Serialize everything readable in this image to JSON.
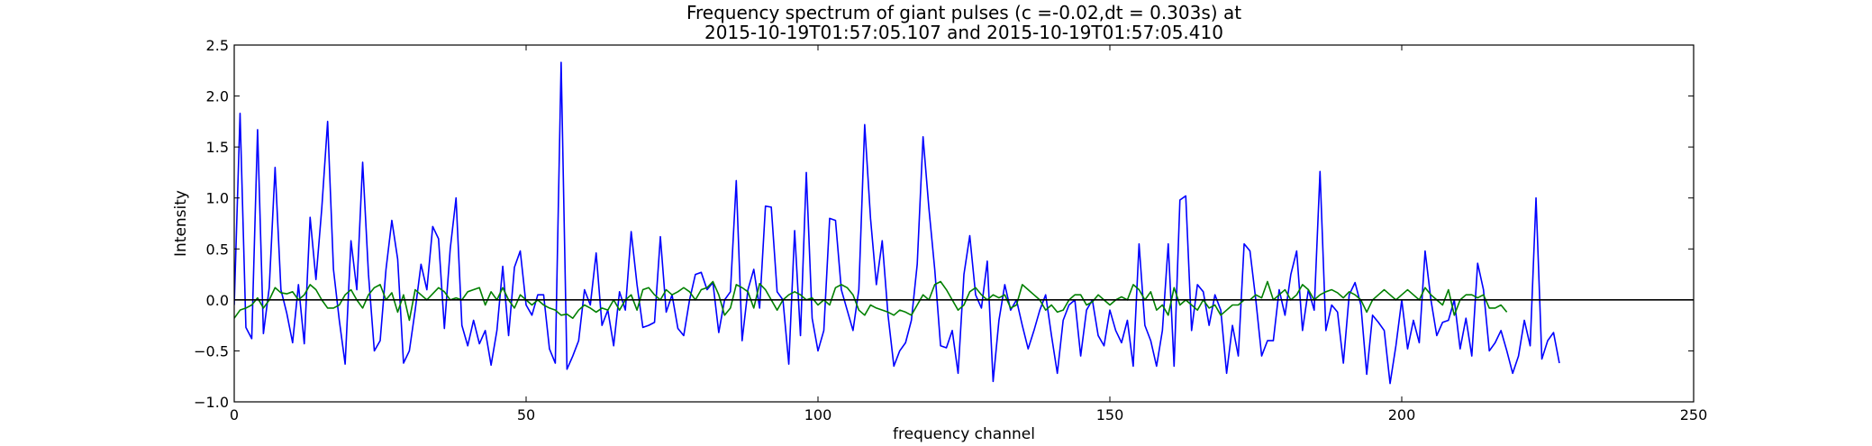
{
  "chart_data": {
    "type": "line",
    "title_line1": "Frequency spectrum of giant pulses (c =-0.02,dt = 0.303s) at",
    "title_line2": "2015-10-19T01:57:05.107 and 2015-10-19T01:57:05.410",
    "xlabel": "frequency channel",
    "ylabel": "Intensity",
    "xlim": [
      0,
      250
    ],
    "ylim": [
      -1.0,
      2.5
    ],
    "xticks": [
      0,
      50,
      100,
      150,
      200,
      250
    ],
    "xtick_labels": [
      "0",
      "50",
      "100",
      "150",
      "200",
      "250"
    ],
    "yticks": [
      -1.0,
      -0.5,
      0.0,
      0.5,
      1.0,
      1.5,
      2.0,
      2.5
    ],
    "ytick_labels": [
      "−1.0",
      "−0.5",
      "0.0",
      "0.5",
      "1.0",
      "1.5",
      "2.0",
      "2.5"
    ],
    "grid": false,
    "reference_line": {
      "y": 0.0,
      "color": "#000000"
    },
    "series": [
      {
        "color": "#0000ff",
        "x_start": 0,
        "x_step": 1,
        "values": [
          -0.05,
          1.83,
          -0.27,
          -0.38,
          1.67,
          -0.33,
          0.12,
          1.3,
          0.1,
          -0.13,
          -0.42,
          0.15,
          -0.43,
          0.81,
          0.2,
          0.9,
          1.75,
          0.3,
          -0.2,
          -0.63,
          0.58,
          0.1,
          1.35,
          0.25,
          -0.5,
          -0.4,
          0.3,
          0.78,
          0.4,
          -0.62,
          -0.5,
          -0.1,
          0.35,
          0.1,
          0.72,
          0.6,
          -0.28,
          0.5,
          1.0,
          -0.25,
          -0.45,
          -0.2,
          -0.43,
          -0.3,
          -0.64,
          -0.3,
          0.33,
          -0.35,
          0.32,
          0.48,
          -0.05,
          -0.15,
          0.05,
          0.05,
          -0.48,
          -0.62,
          2.33,
          -0.68,
          -0.55,
          -0.4,
          0.1,
          -0.05,
          0.46,
          -0.25,
          -0.1,
          -0.45,
          0.08,
          -0.1,
          0.67,
          0.15,
          -0.27,
          -0.25,
          -0.22,
          0.62,
          -0.12,
          0.05,
          -0.28,
          -0.35,
          0.0,
          0.25,
          0.27,
          0.1,
          0.17,
          -0.32,
          0.0,
          0.08,
          1.17,
          -0.4,
          0.1,
          0.3,
          -0.08,
          0.92,
          0.91,
          0.08,
          0.0,
          -0.63,
          0.68,
          -0.35,
          1.25,
          -0.18,
          -0.5,
          -0.3,
          0.8,
          0.78,
          0.1,
          -0.1,
          -0.3,
          0.1,
          1.72,
          0.8,
          0.15,
          0.58,
          -0.15,
          -0.65,
          -0.5,
          -0.42,
          -0.2,
          0.35,
          1.6,
          0.9,
          0.3,
          -0.45,
          -0.47,
          -0.3,
          -0.72,
          0.25,
          0.63,
          0.05,
          -0.08,
          0.38,
          -0.8,
          -0.2,
          0.15,
          -0.1,
          0.0,
          -0.25,
          -0.48,
          -0.3,
          -0.1,
          0.05,
          -0.35,
          -0.72,
          -0.2,
          -0.05,
          0.0,
          -0.55,
          -0.1,
          0.0,
          -0.35,
          -0.45,
          -0.1,
          -0.3,
          -0.42,
          -0.2,
          -0.65,
          0.55,
          -0.25,
          -0.4,
          -0.65,
          -0.3,
          0.55,
          -0.65,
          0.98,
          1.02,
          -0.3,
          0.15,
          0.08,
          -0.25,
          0.05,
          -0.1,
          -0.72,
          -0.25,
          -0.55,
          0.55,
          0.48,
          0.0,
          -0.55,
          -0.4,
          -0.4,
          0.1,
          -0.15,
          0.25,
          0.48,
          -0.3,
          0.1,
          -0.1,
          1.26,
          -0.3,
          -0.05,
          -0.12,
          -0.62,
          0.05,
          0.17,
          -0.05,
          -0.73,
          -0.15,
          -0.22,
          -0.3,
          -0.82,
          -0.45,
          0.0,
          -0.48,
          -0.2,
          -0.42,
          0.48,
          0.0,
          -0.35,
          -0.22,
          -0.2,
          0.0,
          -0.48,
          -0.18,
          -0.55,
          0.36,
          0.1,
          -0.5,
          -0.42,
          -0.3,
          -0.5,
          -0.72,
          -0.55,
          -0.2,
          -0.45,
          1.0,
          -0.58,
          -0.4,
          -0.32,
          -0.62
        ]
      },
      {
        "color": "#008000",
        "x_start": 0,
        "x_step": 1,
        "values": [
          -0.18,
          -0.1,
          -0.08,
          -0.05,
          0.02,
          -0.08,
          0.0,
          0.12,
          0.07,
          0.06,
          0.08,
          0.0,
          0.05,
          0.15,
          0.1,
          0.0,
          -0.08,
          -0.08,
          -0.05,
          0.05,
          0.1,
          0.0,
          -0.08,
          0.05,
          0.12,
          0.15,
          0.0,
          0.07,
          -0.12,
          0.05,
          -0.2,
          0.1,
          0.05,
          0.0,
          0.06,
          0.12,
          0.08,
          0.0,
          0.02,
          0.0,
          0.08,
          0.1,
          0.12,
          -0.05,
          0.08,
          0.0,
          0.12,
          0.0,
          -0.08,
          0.05,
          0.0,
          -0.05,
          0.0,
          -0.05,
          -0.08,
          -0.1,
          -0.15,
          -0.14,
          -0.18,
          -0.1,
          -0.05,
          -0.08,
          -0.12,
          -0.08,
          -0.1,
          0.0,
          -0.1,
          0.0,
          0.05,
          -0.1,
          0.1,
          0.12,
          0.05,
          0.0,
          0.1,
          0.05,
          0.08,
          0.12,
          0.08,
          0.0,
          0.1,
          0.12,
          0.18,
          0.05,
          -0.15,
          -0.08,
          0.15,
          0.12,
          0.08,
          -0.08,
          0.16,
          0.1,
          0.0,
          -0.1,
          0.0,
          0.05,
          0.08,
          0.05,
          0.0,
          0.02,
          -0.05,
          0.0,
          -0.05,
          0.12,
          0.15,
          0.12,
          0.05,
          -0.1,
          -0.15,
          -0.05,
          -0.08,
          -0.1,
          -0.12,
          -0.15,
          -0.1,
          -0.12,
          -0.15,
          -0.05,
          0.05,
          0.0,
          0.15,
          0.18,
          0.1,
          0.0,
          -0.1,
          -0.05,
          0.08,
          0.12,
          0.05,
          0.0,
          0.05,
          0.02,
          0.05,
          -0.08,
          -0.05,
          0.15,
          0.1,
          0.05,
          0.0,
          -0.1,
          -0.05,
          -0.12,
          -0.1,
          0.0,
          0.05,
          0.05,
          -0.05,
          -0.02,
          0.05,
          0.0,
          -0.05,
          0.0,
          0.03,
          0.0,
          0.15,
          0.1,
          0.0,
          0.08,
          -0.1,
          -0.05,
          -0.15,
          0.12,
          -0.05,
          0.0,
          -0.05,
          -0.1,
          0.0,
          -0.08,
          -0.05,
          -0.15,
          -0.1,
          -0.05,
          -0.05,
          0.0,
          0.0,
          0.05,
          0.02,
          0.18,
          0.0,
          0.05,
          0.1,
          0.0,
          0.05,
          0.15,
          0.1,
          0.0,
          0.05,
          0.08,
          0.1,
          0.07,
          0.02,
          0.08,
          0.05,
          0.0,
          -0.12,
          0.0,
          0.05,
          0.1,
          0.05,
          0.0,
          0.05,
          0.1,
          0.05,
          0.0,
          0.12,
          0.05,
          0.0,
          -0.05,
          0.1,
          -0.15,
          0.0,
          0.05,
          0.05,
          0.02,
          0.05,
          -0.08,
          -0.08,
          -0.05,
          -0.12
        ]
      }
    ]
  }
}
